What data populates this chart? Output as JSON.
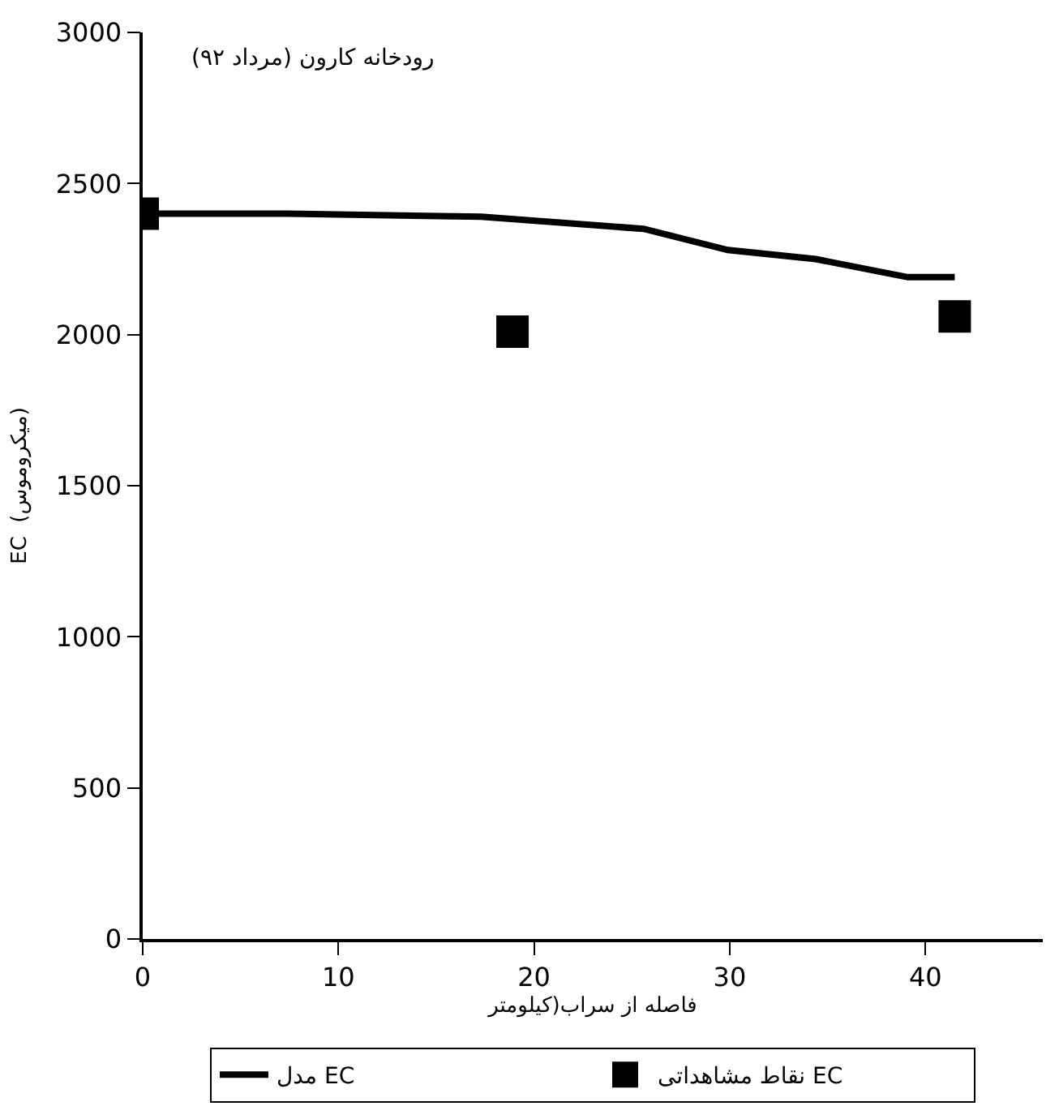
{
  "chart_data": {
    "type": "line",
    "title": "رودخانه کارون (مرداد ۹۲)",
    "xlabel": "فاصله از سراب(کیلومتر",
    "ylabel": "EC  (میکروموس)",
    "xlim": [
      0,
      46
    ],
    "xticks": [
      0,
      10,
      20,
      30,
      40
    ],
    "ylim": [
      0,
      3000
    ],
    "yticks": [
      0,
      500,
      1000,
      1500,
      2000,
      2500,
      3000
    ],
    "legend": "bottom",
    "series": [
      {
        "name": "مدل EC",
        "color": "#000000",
        "line_style": "solid",
        "marker": "none",
        "x": [
          0,
          7.4,
          17.3,
          25.6,
          29.9,
          34.4,
          39.1,
          41.5
        ],
        "values": [
          2400,
          2400,
          2390,
          2350,
          2280,
          2250,
          2190,
          2190
        ]
      },
      {
        "name": "نقاط مشاهداتی EC",
        "type": "scatter",
        "color": "#000000",
        "marker": "square",
        "x": [
          0,
          18.9,
          41.5
        ],
        "values": [
          2400,
          2010,
          2060
        ]
      }
    ]
  }
}
